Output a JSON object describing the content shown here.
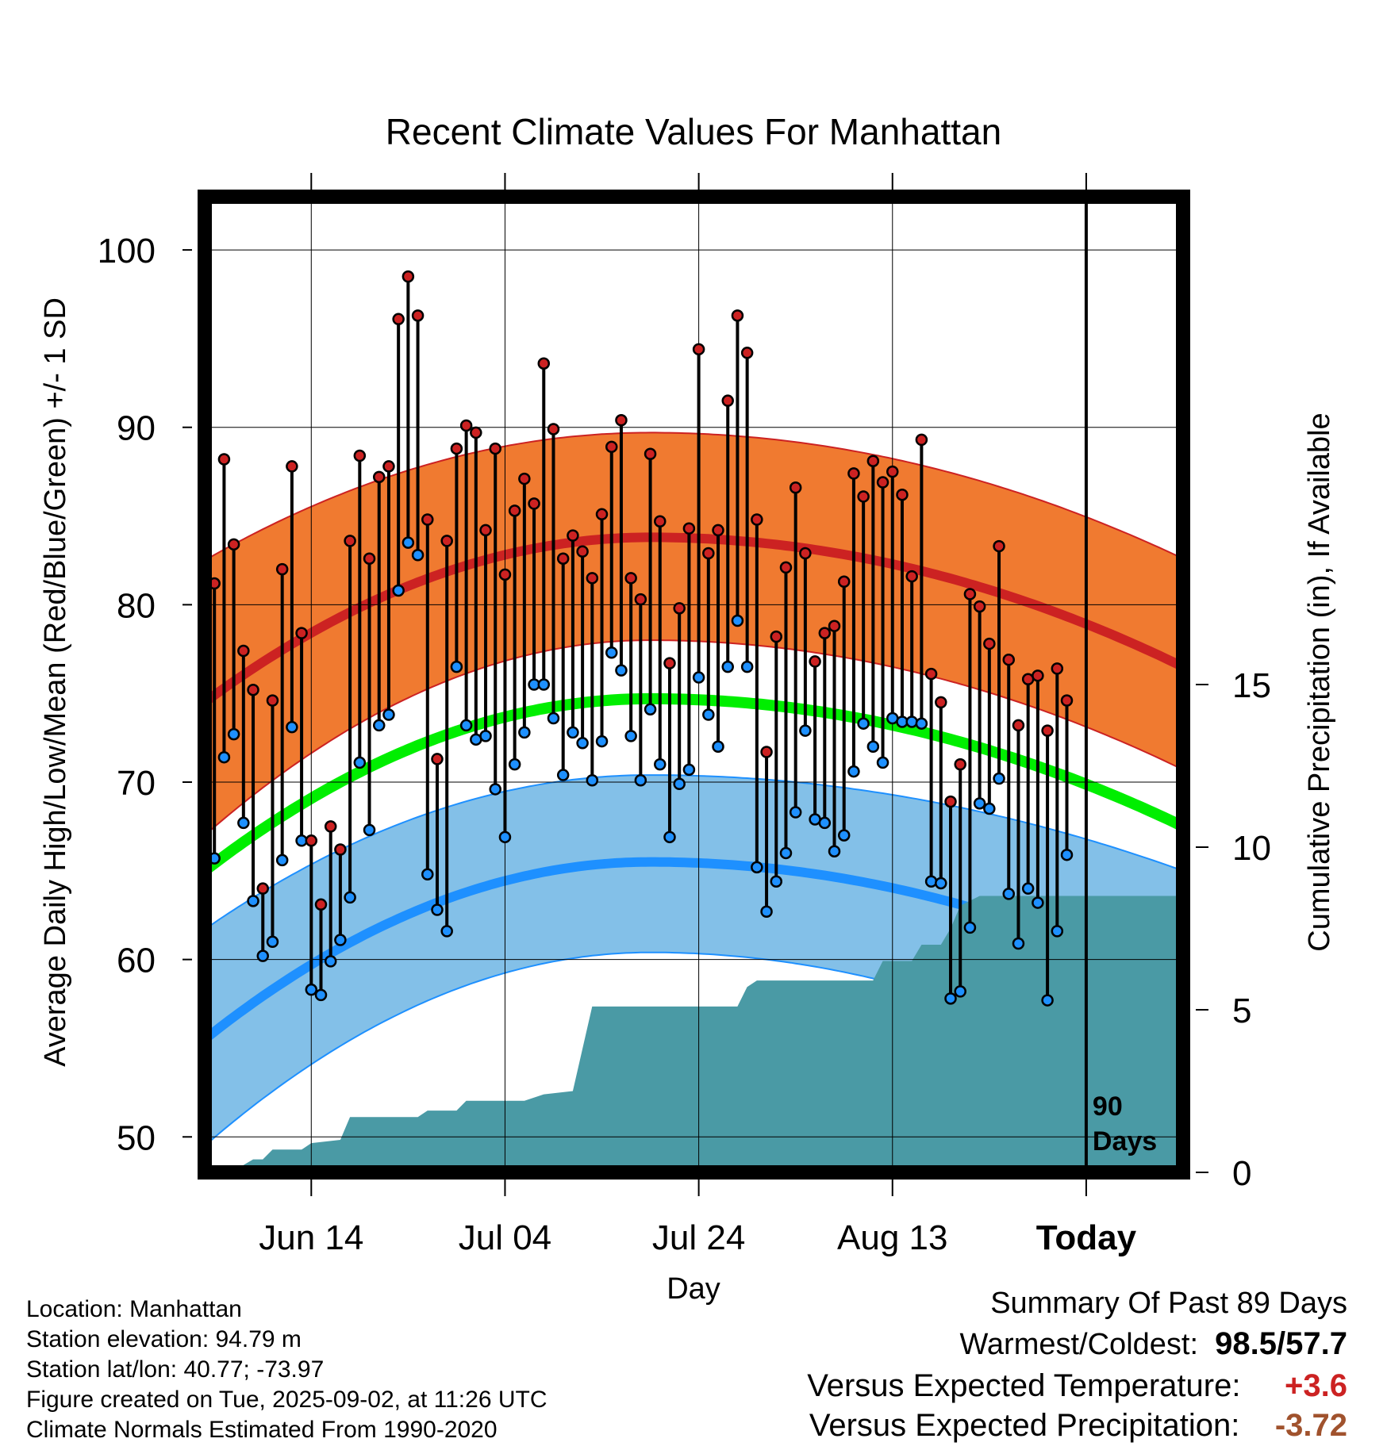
{
  "chart_data": {
    "type": "line",
    "title": "Recent Climate Values For Manhattan",
    "xlabel": "Day",
    "ylabel": "Average Daily High/Low/Mean (Red/Blue/Green) +/- 1 SD",
    "y2label": "Cumulative Precipitation (in), If Available",
    "xlim": [
      0,
      101
    ],
    "ylim": [
      48,
      103
    ],
    "y2lim": [
      0,
      30
    ],
    "x_ticks": [
      {
        "day": 11,
        "label": "Jun 14"
      },
      {
        "day": 31,
        "label": "Jul 04"
      },
      {
        "day": 51,
        "label": "Jul 24"
      },
      {
        "day": 71,
        "label": "Aug 13"
      },
      {
        "day": 91,
        "label": "Today"
      }
    ],
    "y_ticks": [
      50,
      60,
      70,
      80,
      90,
      100
    ],
    "y2_ticks": [
      0,
      5,
      10,
      15
    ],
    "today_marker": {
      "day": 91,
      "label_line1": "90",
      "label_line2": "Days"
    },
    "daily_high": [
      81.2,
      88.2,
      83.4,
      77.4,
      75.2,
      64.0,
      74.6,
      82.0,
      87.8,
      78.4,
      66.7,
      63.1,
      67.5,
      66.2,
      83.6,
      88.4,
      82.6,
      87.2,
      87.8,
      96.1,
      98.5,
      96.3,
      84.8,
      71.3,
      83.6,
      88.8,
      90.1,
      89.7,
      84.2,
      88.8,
      81.7,
      85.3,
      87.1,
      85.7,
      93.6,
      89.9,
      82.6,
      83.9,
      83.0,
      81.5,
      85.1,
      88.9,
      90.4,
      81.5,
      80.3,
      88.5,
      84.7,
      76.7,
      79.8,
      84.3,
      94.4,
      82.9,
      84.2,
      91.5,
      96.3,
      94.2,
      84.8,
      71.7,
      78.2,
      82.1,
      86.6,
      82.9,
      76.8,
      78.4,
      78.8,
      81.3,
      87.4,
      86.1,
      88.1,
      86.9,
      87.5,
      86.2,
      81.6,
      89.3,
      76.1,
      74.5,
      68.9,
      71.0,
      80.6,
      79.9,
      77.8,
      83.3,
      76.9,
      73.2,
      75.8,
      76.0,
      72.9,
      76.4,
      74.6
    ],
    "daily_low": [
      65.7,
      71.4,
      72.7,
      67.7,
      63.3,
      60.2,
      61.0,
      65.6,
      73.1,
      66.7,
      58.3,
      58.0,
      59.9,
      61.1,
      63.5,
      71.1,
      67.3,
      73.2,
      73.8,
      80.8,
      83.5,
      82.8,
      64.8,
      62.8,
      61.6,
      76.5,
      73.2,
      72.4,
      72.6,
      69.6,
      66.9,
      71.0,
      72.8,
      75.5,
      75.5,
      73.6,
      70.4,
      72.8,
      72.2,
      70.1,
      72.3,
      77.3,
      76.3,
      72.6,
      70.1,
      74.1,
      71.0,
      66.9,
      69.9,
      70.7,
      75.9,
      73.8,
      72.0,
      76.5,
      79.1,
      76.5,
      65.2,
      62.7,
      64.4,
      66.0,
      68.3,
      72.9,
      67.9,
      67.7,
      66.1,
      67.0,
      70.6,
      73.3,
      72.0,
      71.1,
      73.6,
      73.4,
      73.4,
      73.3,
      64.4,
      64.3,
      57.8,
      58.2,
      61.8,
      68.8,
      68.5,
      70.2,
      63.7,
      60.9,
      64.0,
      63.2,
      57.7,
      61.6,
      65.9
    ],
    "normals": {
      "high_mean": {
        "start": 74.5,
        "peak": 83.8,
        "end": 76.5
      },
      "high_plus_sd": {
        "start": 82.5,
        "peak": 89.7,
        "end": 82.6
      },
      "high_minus_sd": {
        "start": 67.0,
        "peak": 78.0,
        "end": 70.7
      },
      "mean_temp": {
        "start": 65.0,
        "peak": 74.7,
        "end": 67.5
      },
      "low_mean": {
        "start": 55.5,
        "peak": 65.5,
        "end": 58.4
      },
      "low_plus_sd": {
        "start": 61.7,
        "peak": 70.4,
        "end": 65.0
      },
      "low_minus_sd": {
        "start": 49.5,
        "peak": 60.4,
        "end": 52.0
      },
      "peak_day": 46
    },
    "cumulative_precip": [
      [
        3,
        0.05
      ],
      [
        5,
        0.4
      ],
      [
        6,
        0.4
      ],
      [
        7,
        0.7
      ],
      [
        10,
        0.7
      ],
      [
        11,
        0.9
      ],
      [
        14,
        1.0
      ],
      [
        15,
        1.7
      ],
      [
        22,
        1.7
      ],
      [
        23,
        1.9
      ],
      [
        26,
        1.9
      ],
      [
        27,
        2.2
      ],
      [
        33,
        2.2
      ],
      [
        35,
        2.4
      ],
      [
        38,
        2.5
      ],
      [
        40,
        5.1
      ],
      [
        55,
        5.1
      ],
      [
        56,
        5.7
      ],
      [
        57,
        5.9
      ],
      [
        69,
        5.9
      ],
      [
        70,
        6.5
      ],
      [
        73,
        6.5
      ],
      [
        74,
        7.0
      ],
      [
        76,
        7.0
      ],
      [
        77,
        7.5
      ],
      [
        78,
        8.2
      ],
      [
        80,
        8.5
      ],
      [
        101,
        8.5
      ]
    ],
    "series": [
      {
        "name": "Red",
        "color": "#cc2222"
      },
      {
        "name": "Blue",
        "color": "#1e90ff"
      },
      {
        "name": "Green",
        "color": "#00ee00"
      }
    ],
    "grid": true,
    "colors": {
      "high_band": "#f07a30",
      "high_mean_line": "#cc2222",
      "low_band": "#83c0e8",
      "low_mean_line": "#1e90ff",
      "mean_line": "#00ee00",
      "precip_fill": "#4a9aa5",
      "high_dot": "#cc2222",
      "low_dot": "#1e90ff"
    }
  },
  "metadata": {
    "location": "Location: Manhattan",
    "elevation": "Station elevation: 94.79 m",
    "latlon": "Station lat/lon: 40.77; -73.97",
    "created": "Figure created on Tue, 2025-09-02, at 11:26 UTC",
    "normals": "Climate Normals Estimated From 1990-2020"
  },
  "summary": {
    "heading": "Summary Of Past 89 Days",
    "warm_cold_label": "Warmest/Coldest:",
    "warmest": "98.5",
    "separator": "/",
    "coldest": "57.7",
    "temp_label": "Versus Expected Temperature:",
    "temp_value": "+3.6",
    "temp_color": "#cc2222",
    "precip_label": "Versus Expected Precipitation:",
    "precip_value": "-3.72",
    "precip_color": "#a0522d"
  }
}
